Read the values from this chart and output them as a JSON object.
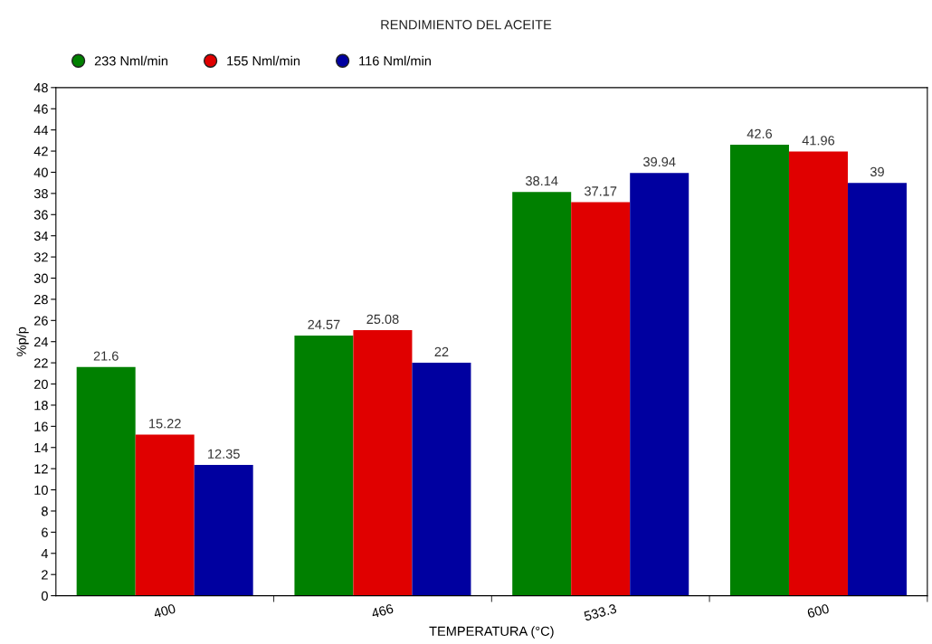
{
  "chart_data": {
    "type": "bar",
    "title": "RENDIMIENTO DEL ACEITE",
    "xlabel": "TEMPERATURA (°C)",
    "ylabel": "%p/p",
    "categories": [
      "400",
      "466",
      "533.3",
      "600"
    ],
    "series": [
      {
        "name": "233 Nml/min",
        "color": "#008000",
        "values": [
          21.6,
          24.57,
          38.14,
          42.6
        ]
      },
      {
        "name": "155 Nml/min",
        "color": "#e00000",
        "values": [
          15.22,
          25.08,
          37.17,
          41.96
        ]
      },
      {
        "name": "116 Nml/min",
        "color": "#0000a0",
        "values": [
          12.35,
          22,
          39.94,
          39
        ]
      }
    ],
    "ylim": [
      0,
      48
    ],
    "yticks": [
      0,
      2,
      4,
      6,
      8,
      10,
      12,
      14,
      16,
      18,
      20,
      22,
      24,
      26,
      28,
      30,
      32,
      34,
      36,
      38,
      40,
      42,
      44,
      46,
      48
    ],
    "data_labels": true,
    "grid": false,
    "legend": "top left"
  }
}
